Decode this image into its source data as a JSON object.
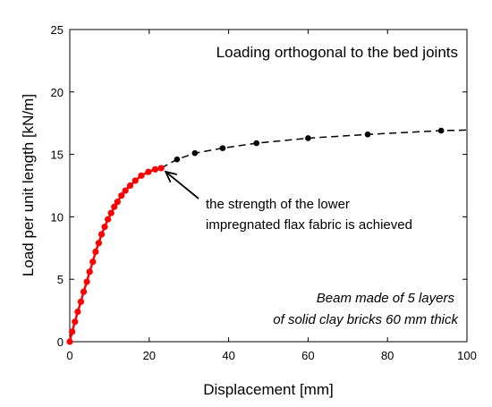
{
  "chart_data": {
    "type": "line",
    "title": "Loading orthogonal to the bed joints",
    "xlabel": "Displacement   [mm]",
    "ylabel": "Load per unit length   [kN/m]",
    "xlim": [
      0,
      100
    ],
    "ylim": [
      0,
      25
    ],
    "x_ticks": [
      0,
      20,
      40,
      60,
      80,
      100
    ],
    "y_ticks": [
      0,
      5,
      10,
      15,
      20,
      25
    ],
    "grid": false,
    "colors": {
      "red": "#ff0000",
      "black": "#000000"
    },
    "series": [
      {
        "style": "solid-red-markers",
        "x": [
          0,
          0.6,
          1.3,
          2.0,
          2.8,
          3.5,
          4.3,
          5.0,
          5.8,
          6.5,
          7.3,
          8.0,
          8.8,
          9.6,
          10.4,
          11.2,
          12.0,
          13.0,
          14.0,
          15.2,
          16.5,
          18.0,
          19.8,
          21.5,
          23.0
        ],
        "y": [
          0.0,
          0.8,
          1.6,
          2.4,
          3.2,
          4.0,
          4.8,
          5.6,
          6.4,
          7.2,
          7.9,
          8.6,
          9.2,
          9.8,
          10.3,
          10.8,
          11.2,
          11.7,
          12.1,
          12.5,
          12.9,
          13.3,
          13.6,
          13.8,
          13.9
        ]
      },
      {
        "style": "dashed-black-markers",
        "x": [
          23.0,
          27.0,
          31.5,
          38.5,
          47.0,
          60.0,
          75.0,
          93.5
        ],
        "y": [
          13.9,
          14.6,
          15.1,
          15.5,
          15.9,
          16.3,
          16.6,
          16.9
        ]
      }
    ],
    "dashed_curve_end": {
      "x": 100,
      "y": 16.95
    },
    "annotation": {
      "lines": [
        "the strength of the lower",
        "impregnated flax fabric is achieved"
      ],
      "arrow_target": {
        "x": 23.0,
        "y": 13.9
      }
    },
    "note": {
      "lines": [
        "Beam made of 5 layers",
        "of solid clay bricks 60 mm thick"
      ]
    }
  }
}
